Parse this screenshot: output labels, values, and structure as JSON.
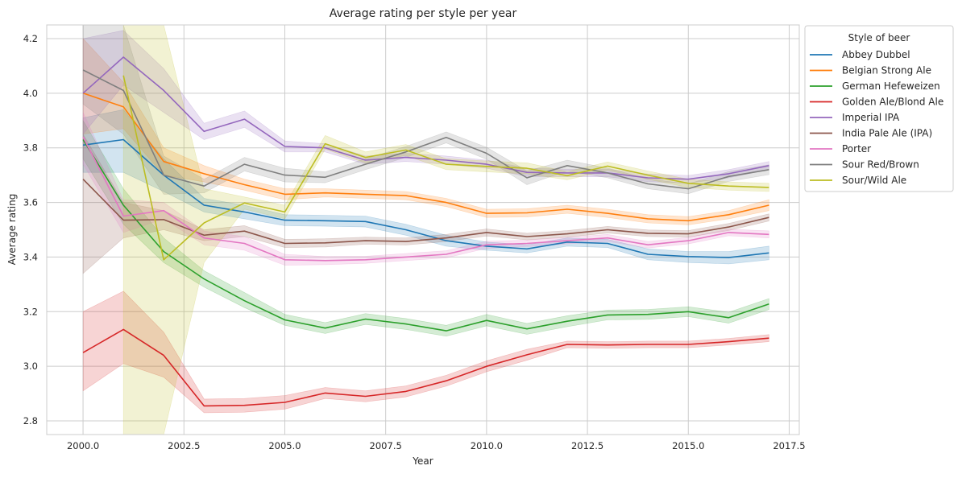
{
  "chart_data": {
    "type": "line",
    "title": "Average rating per style per year",
    "xlabel": "Year",
    "ylabel": "Average rating",
    "xlim": [
      1999.1,
      2017.75
    ],
    "ylim": [
      2.75,
      4.25
    ],
    "x_ticks": [
      2000.0,
      2002.5,
      2005.0,
      2007.5,
      2010.0,
      2012.5,
      2015.0,
      2017.5
    ],
    "x_tick_labels": [
      "2000.0",
      "2002.5",
      "2005.0",
      "2007.5",
      "2010.0",
      "2012.5",
      "2015.0",
      "2017.5"
    ],
    "y_ticks": [
      2.8,
      3.0,
      3.2,
      3.4,
      3.6,
      3.8,
      4.0,
      4.2
    ],
    "y_tick_labels": [
      "2.8",
      "3.0",
      "3.2",
      "3.4",
      "3.6",
      "3.8",
      "4.0",
      "4.2"
    ],
    "grid": true,
    "legend_title": "Style of beer",
    "legend_position": "outside-right-top",
    "series": [
      {
        "name": "Abbey Dubbel",
        "color": "#1f77b4",
        "x": [
          2000,
          2001,
          2002,
          2003,
          2004,
          2005,
          2006,
          2007,
          2008,
          2009,
          2010,
          2011,
          2012,
          2013,
          2014,
          2015,
          2016,
          2017
        ],
        "y": [
          3.81,
          3.83,
          3.7,
          3.59,
          3.565,
          3.535,
          3.533,
          3.53,
          3.5,
          3.46,
          3.44,
          3.43,
          3.455,
          3.45,
          3.41,
          3.402,
          3.398,
          3.415
        ],
        "lower": [
          3.71,
          3.71,
          3.64,
          3.565,
          3.54,
          3.515,
          3.513,
          3.51,
          3.48,
          3.44,
          3.425,
          3.415,
          3.44,
          3.435,
          3.39,
          3.38,
          3.375,
          3.39
        ],
        "upper": [
          3.91,
          3.94,
          3.76,
          3.615,
          3.59,
          3.555,
          3.553,
          3.55,
          3.52,
          3.48,
          3.455,
          3.445,
          3.47,
          3.465,
          3.43,
          3.42,
          3.42,
          3.44
        ]
      },
      {
        "name": "Belgian Strong Ale",
        "color": "#ff7f0e",
        "x": [
          2000,
          2001,
          2002,
          2003,
          2004,
          2005,
          2006,
          2007,
          2008,
          2009,
          2010,
          2011,
          2012,
          2013,
          2014,
          2015,
          2016,
          2017
        ],
        "y": [
          4.0,
          3.95,
          3.75,
          3.705,
          3.665,
          3.63,
          3.635,
          3.63,
          3.625,
          3.6,
          3.56,
          3.562,
          3.575,
          3.56,
          3.54,
          3.533,
          3.555,
          3.59
        ],
        "lower": [
          3.85,
          3.87,
          3.7,
          3.675,
          3.645,
          3.61,
          3.62,
          3.615,
          3.61,
          3.585,
          3.545,
          3.547,
          3.56,
          3.545,
          3.525,
          3.518,
          3.54,
          3.57
        ],
        "upper": [
          4.2,
          4.04,
          3.8,
          3.735,
          3.685,
          3.65,
          3.65,
          3.645,
          3.64,
          3.615,
          3.575,
          3.577,
          3.59,
          3.575,
          3.555,
          3.548,
          3.57,
          3.61
        ]
      },
      {
        "name": "German Hefeweizen",
        "color": "#2ca02c",
        "x": [
          2000,
          2001,
          2002,
          2003,
          2004,
          2005,
          2006,
          2007,
          2008,
          2009,
          2010,
          2011,
          2012,
          2013,
          2014,
          2015,
          2016,
          2017
        ],
        "y": [
          3.83,
          3.59,
          3.42,
          3.32,
          3.24,
          3.17,
          3.14,
          3.173,
          3.155,
          3.13,
          3.168,
          3.137,
          3.165,
          3.188,
          3.19,
          3.2,
          3.178,
          3.228
        ],
        "lower": [
          3.76,
          3.52,
          3.38,
          3.29,
          3.215,
          3.15,
          3.12,
          3.153,
          3.135,
          3.11,
          3.148,
          3.117,
          3.145,
          3.17,
          3.172,
          3.182,
          3.158,
          3.208
        ],
        "upper": [
          3.9,
          3.65,
          3.47,
          3.35,
          3.27,
          3.19,
          3.16,
          3.193,
          3.175,
          3.15,
          3.19,
          3.157,
          3.185,
          3.206,
          3.208,
          3.218,
          3.198,
          3.248
        ]
      },
      {
        "name": "Golden Ale/Blond Ale",
        "color": "#d62728",
        "x": [
          2000,
          2001,
          2002,
          2003,
          2004,
          2005,
          2006,
          2007,
          2008,
          2009,
          2010,
          2011,
          2012,
          2013,
          2014,
          2015,
          2016,
          2017
        ],
        "y": [
          3.05,
          3.135,
          3.04,
          2.855,
          2.857,
          2.868,
          2.902,
          2.89,
          2.908,
          2.947,
          3.0,
          3.042,
          3.08,
          3.078,
          3.08,
          3.08,
          3.09,
          3.103
        ],
        "lower": [
          2.91,
          3.01,
          2.96,
          2.83,
          2.832,
          2.843,
          2.882,
          2.87,
          2.888,
          2.927,
          2.98,
          3.022,
          3.068,
          3.066,
          3.068,
          3.068,
          3.078,
          3.09
        ],
        "upper": [
          3.2,
          3.275,
          3.125,
          2.88,
          2.882,
          2.893,
          2.922,
          2.91,
          2.928,
          2.967,
          3.02,
          3.062,
          3.092,
          3.09,
          3.092,
          3.092,
          3.102,
          3.116
        ]
      },
      {
        "name": "Imperial IPA",
        "color": "#9467bd",
        "x": [
          2000,
          2001,
          2002,
          2003,
          2004,
          2005,
          2006,
          2007,
          2008,
          2009,
          2010,
          2011,
          2012,
          2013,
          2014,
          2015,
          2016,
          2017
        ],
        "y": [
          4.0,
          4.132,
          4.01,
          3.86,
          3.905,
          3.805,
          3.8,
          3.755,
          3.765,
          3.755,
          3.74,
          3.71,
          3.708,
          3.708,
          3.69,
          3.685,
          3.705,
          3.735
        ],
        "lower": [
          3.85,
          4.03,
          3.93,
          3.83,
          3.875,
          3.785,
          3.785,
          3.74,
          3.75,
          3.74,
          3.725,
          3.695,
          3.694,
          3.694,
          3.676,
          3.671,
          3.69,
          3.72
        ],
        "upper": [
          4.2,
          4.23,
          4.09,
          3.89,
          3.935,
          3.825,
          3.815,
          3.77,
          3.78,
          3.77,
          3.755,
          3.725,
          3.722,
          3.722,
          3.704,
          3.699,
          3.72,
          3.75
        ]
      },
      {
        "name": "India Pale Ale (IPA)",
        "color": "#8c564b",
        "x": [
          2000,
          2001,
          2002,
          2003,
          2004,
          2005,
          2006,
          2007,
          2008,
          2009,
          2010,
          2011,
          2012,
          2013,
          2014,
          2015,
          2016,
          2017
        ],
        "y": [
          3.685,
          3.535,
          3.537,
          3.48,
          3.495,
          3.45,
          3.452,
          3.46,
          3.457,
          3.47,
          3.49,
          3.475,
          3.485,
          3.5,
          3.487,
          3.485,
          3.51,
          3.545
        ],
        "lower": [
          3.34,
          3.47,
          3.5,
          3.46,
          3.475,
          3.435,
          3.437,
          3.447,
          3.444,
          3.457,
          3.477,
          3.463,
          3.473,
          3.488,
          3.475,
          3.473,
          3.497,
          3.532
        ],
        "upper": [
          3.85,
          3.6,
          3.57,
          3.5,
          3.515,
          3.465,
          3.467,
          3.473,
          3.47,
          3.483,
          3.503,
          3.487,
          3.497,
          3.512,
          3.499,
          3.497,
          3.523,
          3.558
        ]
      },
      {
        "name": "Porter",
        "color": "#e377c2",
        "x": [
          2000,
          2001,
          2002,
          2003,
          2004,
          2005,
          2006,
          2007,
          2008,
          2009,
          2010,
          2011,
          2012,
          2013,
          2014,
          2015,
          2016,
          2017
        ],
        "y": [
          3.84,
          3.55,
          3.57,
          3.47,
          3.45,
          3.39,
          3.387,
          3.39,
          3.4,
          3.41,
          3.445,
          3.45,
          3.46,
          3.47,
          3.445,
          3.46,
          3.49,
          3.483
        ],
        "lower": [
          3.74,
          3.49,
          3.54,
          3.445,
          3.425,
          3.37,
          3.372,
          3.377,
          3.387,
          3.397,
          3.432,
          3.438,
          3.448,
          3.457,
          3.433,
          3.448,
          3.478,
          3.47
        ],
        "upper": [
          3.93,
          3.61,
          3.6,
          3.495,
          3.475,
          3.41,
          3.402,
          3.403,
          3.413,
          3.423,
          3.458,
          3.462,
          3.472,
          3.483,
          3.457,
          3.472,
          3.502,
          3.496
        ]
      },
      {
        "name": "Sour Red/Brown",
        "color": "#7f7f7f",
        "x": [
          2000,
          2001,
          2002,
          2003,
          2004,
          2005,
          2006,
          2007,
          2008,
          2009,
          2010,
          2011,
          2012,
          2013,
          2014,
          2015,
          2016,
          2017
        ],
        "y": [
          4.085,
          4.01,
          3.7,
          3.66,
          3.74,
          3.7,
          3.692,
          3.74,
          3.785,
          3.838,
          3.78,
          3.69,
          3.735,
          3.708,
          3.668,
          3.65,
          3.695,
          3.72
        ],
        "lower": [
          3.96,
          3.85,
          3.63,
          3.635,
          3.715,
          3.675,
          3.672,
          3.72,
          3.765,
          3.818,
          3.758,
          3.665,
          3.715,
          3.69,
          3.65,
          3.632,
          3.677,
          3.702
        ],
        "upper": [
          4.25,
          4.25,
          3.77,
          3.685,
          3.765,
          3.725,
          3.712,
          3.76,
          3.805,
          3.858,
          3.802,
          3.715,
          3.755,
          3.726,
          3.686,
          3.668,
          3.713,
          3.738
        ]
      },
      {
        "name": "Sour/Wild Ale",
        "color": "#bcbd22",
        "x": [
          2001,
          2002,
          2003,
          2004,
          2005,
          2006,
          2007,
          2008,
          2009,
          2010,
          2011,
          2012,
          2013,
          2014,
          2015,
          2016,
          2017
        ],
        "y": [
          4.065,
          3.39,
          3.525,
          3.598,
          3.565,
          3.815,
          3.765,
          3.792,
          3.74,
          3.732,
          3.725,
          3.698,
          3.733,
          3.7,
          3.67,
          3.66,
          3.655
        ],
        "lower": [
          2.75,
          2.75,
          3.38,
          3.575,
          3.54,
          3.795,
          3.745,
          3.772,
          3.72,
          3.712,
          3.705,
          3.683,
          3.718,
          3.685,
          3.655,
          3.645,
          3.64
        ],
        "upper": [
          4.25,
          4.25,
          3.65,
          3.62,
          3.59,
          3.845,
          3.785,
          3.812,
          3.76,
          3.752,
          3.745,
          3.713,
          3.748,
          3.715,
          3.685,
          3.675,
          3.67
        ]
      }
    ]
  }
}
